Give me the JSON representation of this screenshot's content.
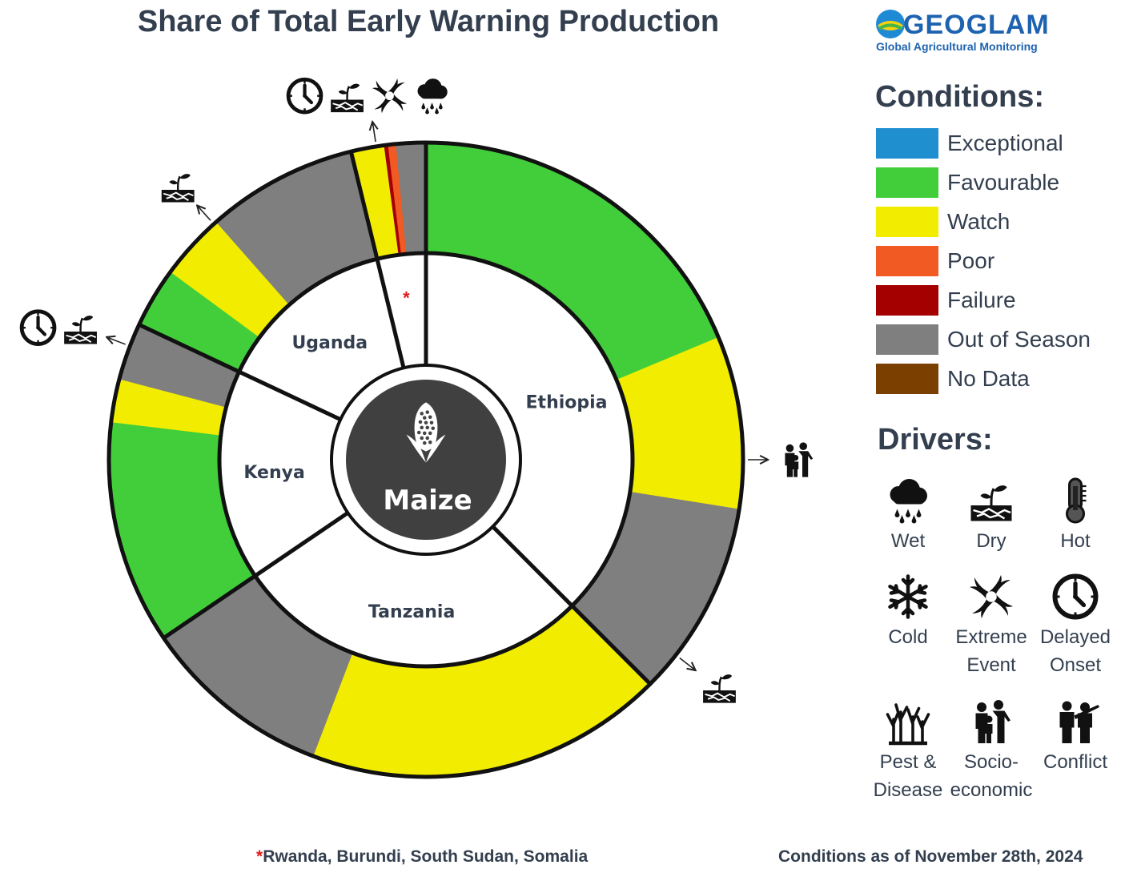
{
  "title": "Share of Total Early Warning Production",
  "crop": "Maize",
  "logo": {
    "name": "GEOGLAM",
    "subtitle": "Global Agricultural Monitoring"
  },
  "colors": {
    "Exceptional": "#1f8fd0",
    "Favourable": "#42ce3a",
    "Watch": "#f2ed00",
    "Poor": "#f15a22",
    "Failure": "#a50000",
    "Out of Season": "#7f7f7f",
    "No Data": "#7b3f00"
  },
  "legend": {
    "conditions_title": "Conditions:",
    "conditions": [
      "Exceptional",
      "Favourable",
      "Watch",
      "Poor",
      "Failure",
      "Out of Season",
      "No Data"
    ],
    "drivers_title": "Drivers:",
    "drivers": [
      {
        "icon": "wet-icon",
        "label1": "Wet",
        "label2": ""
      },
      {
        "icon": "dry-icon",
        "label1": "Dry",
        "label2": ""
      },
      {
        "icon": "hot-icon",
        "label1": "Hot",
        "label2": ""
      },
      {
        "icon": "cold-icon",
        "label1": "Cold",
        "label2": ""
      },
      {
        "icon": "extreme-event-icon",
        "label1": "Extreme",
        "label2": "Event"
      },
      {
        "icon": "delayed-onset-icon",
        "label1": "Delayed",
        "label2": "Onset"
      },
      {
        "icon": "pest-disease-icon",
        "label1": "Pest &",
        "label2": "Disease"
      },
      {
        "icon": "socio-economic-icon",
        "label1": "Socio-",
        "label2": "economic"
      },
      {
        "icon": "conflict-icon",
        "label1": "Conflict",
        "label2": ""
      }
    ]
  },
  "chart_data": {
    "type": "pie",
    "subtype": "nested-donut",
    "inner_ring_unit": "share of total early warning production (%)",
    "countries": [
      {
        "name": "Ethiopia",
        "share": 37.5,
        "segments": [
          {
            "condition": "Favourable",
            "share": 18.7
          },
          {
            "condition": "Watch",
            "share": 8.8
          },
          {
            "condition": "Out of Season",
            "share": 10.0
          }
        ],
        "drivers": [
          "socio-economic-icon"
        ]
      },
      {
        "name": "Tanzania",
        "share": 28.0,
        "segments": [
          {
            "condition": "Watch",
            "share": 18.3
          },
          {
            "condition": "Out of Season",
            "share": 9.7
          }
        ],
        "drivers": [
          "dry-icon"
        ]
      },
      {
        "name": "Kenya",
        "share": 16.5,
        "segments": [
          {
            "condition": "Favourable",
            "share": 11.4
          },
          {
            "condition": "Watch",
            "share": 2.2
          },
          {
            "condition": "Out of Season",
            "share": 2.9
          }
        ],
        "drivers": [
          "delayed-onset-icon",
          "dry-icon"
        ]
      },
      {
        "name": "Uganda",
        "share": 14.2,
        "segments": [
          {
            "condition": "Favourable",
            "share": 3.1
          },
          {
            "condition": "Watch",
            "share": 3.4
          },
          {
            "condition": "Out of Season",
            "share": 7.7
          }
        ],
        "drivers": [
          "dry-icon"
        ]
      },
      {
        "name": "",
        "share": 3.8,
        "star": "*",
        "segments": [
          {
            "condition": "Watch",
            "share": 1.7
          },
          {
            "condition": "Failure",
            "share": 0.2
          },
          {
            "condition": "Poor",
            "share": 0.4
          },
          {
            "condition": "Out of Season",
            "share": 1.5
          }
        ],
        "drivers": [
          "delayed-onset-icon",
          "dry-icon",
          "extreme-event-icon",
          "wet-icon"
        ]
      }
    ]
  },
  "footnote": {
    "star": "*",
    "text": "Rwanda, Burundi, South Sudan, Somalia"
  },
  "date_text": "Conditions as of November 28th, 2024"
}
